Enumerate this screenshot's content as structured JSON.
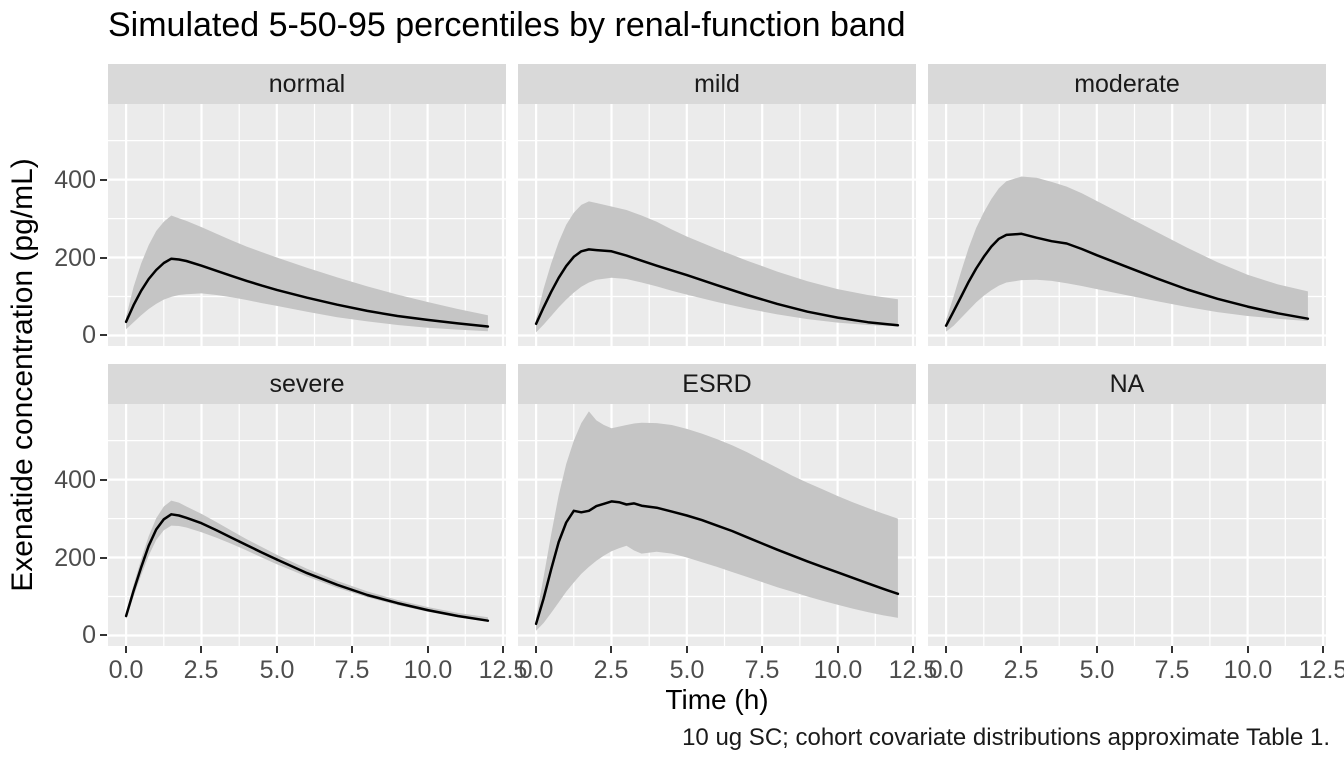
{
  "title": "Simulated 5-50-95 percentiles by renal-function band",
  "caption": "10 ug SC; cohort covariate distributions approximate Table 1.",
  "colors": {
    "background": "#FFFFFF",
    "panel_bg": "#EBEBEB",
    "strip_bg": "#D9D9D9",
    "strip_text": "#1A1A1A",
    "grid": "#FFFFFF",
    "ribbon": "#C5C5C5",
    "median_line": "#000000",
    "tick_mark": "#333333",
    "tick_label": "#4D4D4D"
  },
  "axes": {
    "x": {
      "title": "Time (h)",
      "ticks": [
        0,
        2.5,
        5,
        7.5,
        10,
        12.5
      ],
      "tick_labels": [
        "0.0",
        "2.5",
        "5.0",
        "7.5",
        "10.0",
        "12.5"
      ],
      "minor": [
        1.25,
        3.75,
        6.25,
        8.75,
        11.25
      ],
      "domain": [
        -0.6,
        12.6
      ]
    },
    "y": {
      "title": "Exenatide concentration (pg/mL)",
      "ticks": [
        0,
        200,
        400
      ],
      "tick_labels": [
        "0",
        "200",
        "400"
      ],
      "minor": [
        100,
        300,
        500
      ],
      "domain": [
        -27,
        594
      ]
    }
  },
  "chart_data": {
    "type": "area",
    "description": "Faceted line chart with 5th-95th percentile ribbon and median line per renal-function band; grid 2 rows x 3 cols; NA facet empty",
    "legend_position": "none",
    "grid": "on",
    "facets": [
      {
        "label": "normal",
        "x": [
          0,
          0.25,
          0.5,
          0.75,
          1,
          1.25,
          1.5,
          1.75,
          2,
          2.5,
          3,
          3.5,
          4,
          4.5,
          5,
          6,
          7,
          8,
          9,
          10,
          11,
          12
        ],
        "p50": [
          35,
          78,
          115,
          145,
          168,
          186,
          197,
          195,
          191,
          179,
          166,
          153,
          140,
          128,
          117,
          97,
          79,
          63,
          50,
          40,
          31,
          23
        ],
        "p95": [
          48,
          125,
          185,
          232,
          268,
          292,
          308,
          301,
          294,
          278,
          261,
          244,
          228,
          214,
          200,
          174,
          149,
          126,
          105,
          86,
          68,
          52
        ],
        "p5": [
          16,
          34,
          52,
          68,
          81,
          92,
          99,
          104,
          106,
          108,
          104,
          98,
          91,
          83,
          76,
          61,
          47,
          36,
          27,
          20,
          15,
          11
        ]
      },
      {
        "label": "mild",
        "x": [
          0,
          0.25,
          0.5,
          0.75,
          1,
          1.25,
          1.5,
          1.75,
          2,
          2.5,
          3,
          3.5,
          4,
          4.5,
          5,
          6,
          7,
          8,
          9,
          10,
          11,
          12
        ],
        "p50": [
          30,
          72,
          112,
          148,
          178,
          202,
          216,
          221,
          219,
          216,
          205,
          192,
          179,
          167,
          155,
          129,
          104,
          81,
          61,
          46,
          34,
          26
        ],
        "p95": [
          42,
          120,
          185,
          240,
          284,
          315,
          335,
          344,
          340,
          331,
          322,
          308,
          292,
          272,
          254,
          222,
          192,
          164,
          139,
          119,
          104,
          93
        ],
        "p5": [
          8,
          28,
          50,
          72,
          92,
          110,
          125,
          136,
          143,
          148,
          145,
          136,
          126,
          115,
          105,
          86,
          69,
          54,
          42,
          33,
          27,
          23
        ]
      },
      {
        "label": "moderate",
        "x": [
          0,
          0.25,
          0.5,
          0.75,
          1,
          1.25,
          1.5,
          1.75,
          2,
          2.5,
          3,
          3.5,
          4,
          4.5,
          5,
          6,
          7,
          8,
          9,
          10,
          11,
          12
        ],
        "p50": [
          25,
          62,
          100,
          138,
          172,
          202,
          228,
          248,
          258,
          261,
          251,
          242,
          236,
          222,
          206,
          176,
          146,
          118,
          94,
          74,
          57,
          43
        ],
        "p95": [
          40,
          100,
          165,
          225,
          276,
          316,
          350,
          378,
          396,
          408,
          405,
          394,
          382,
          365,
          345,
          305,
          265,
          225,
          188,
          156,
          131,
          113
        ],
        "p5": [
          10,
          25,
          45,
          65,
          85,
          102,
          116,
          128,
          136,
          142,
          143,
          140,
          134,
          127,
          119,
          103,
          88,
          73,
          60,
          50,
          43,
          37
        ]
      },
      {
        "label": "severe",
        "x": [
          0,
          0.25,
          0.5,
          0.75,
          1,
          1.25,
          1.5,
          1.75,
          2,
          2.5,
          3,
          3.5,
          4,
          4.5,
          5,
          6,
          7,
          8,
          9,
          10,
          11,
          12
        ],
        "p50": [
          50,
          115,
          175,
          230,
          272,
          298,
          311,
          308,
          302,
          288,
          270,
          251,
          232,
          213,
          195,
          160,
          130,
          104,
          83,
          65,
          50,
          38
        ],
        "p95": [
          58,
          130,
          196,
          255,
          301,
          331,
          346,
          341,
          331,
          312,
          291,
          269,
          247,
          227,
          207,
          171,
          140,
          113,
          91,
          73,
          58,
          47
        ],
        "p5": [
          42,
          100,
          155,
          205,
          245,
          270,
          282,
          281,
          277,
          265,
          251,
          235,
          218,
          200,
          183,
          151,
          122,
          98,
          78,
          61,
          47,
          35
        ]
      },
      {
        "label": "ESRD",
        "x": [
          0,
          0.25,
          0.5,
          0.75,
          1,
          1.25,
          1.5,
          1.75,
          2,
          2.25,
          2.5,
          2.75,
          3,
          3.25,
          3.5,
          4,
          4.5,
          5,
          5.5,
          6,
          6.5,
          7,
          7.5,
          8,
          8.5,
          9,
          9.5,
          10,
          10.5,
          11,
          11.5,
          12
        ],
        "p50": [
          30,
          95,
          170,
          240,
          290,
          320,
          316,
          320,
          332,
          338,
          344,
          342,
          336,
          339,
          333,
          328,
          318,
          308,
          296,
          282,
          268,
          252,
          236,
          220,
          205,
          190,
          176,
          162,
          148,
          134,
          120,
          107
        ],
        "p95": [
          45,
          150,
          260,
          360,
          440,
          500,
          545,
          575,
          552,
          540,
          532,
          536,
          540,
          544,
          546,
          545,
          540,
          530,
          518,
          504,
          488,
          470,
          450,
          430,
          410,
          392,
          375,
          358,
          342,
          327,
          313,
          300
        ],
        "p5": [
          12,
          32,
          58,
          85,
          112,
          136,
          158,
          176,
          192,
          205,
          216,
          224,
          230,
          218,
          210,
          215,
          210,
          200,
          188,
          176,
          163,
          150,
          137,
          124,
          112,
          100,
          89,
          79,
          69,
          60,
          52,
          45
        ]
      },
      {
        "label": "NA",
        "x": [],
        "p50": [],
        "p95": [],
        "p5": []
      }
    ]
  }
}
